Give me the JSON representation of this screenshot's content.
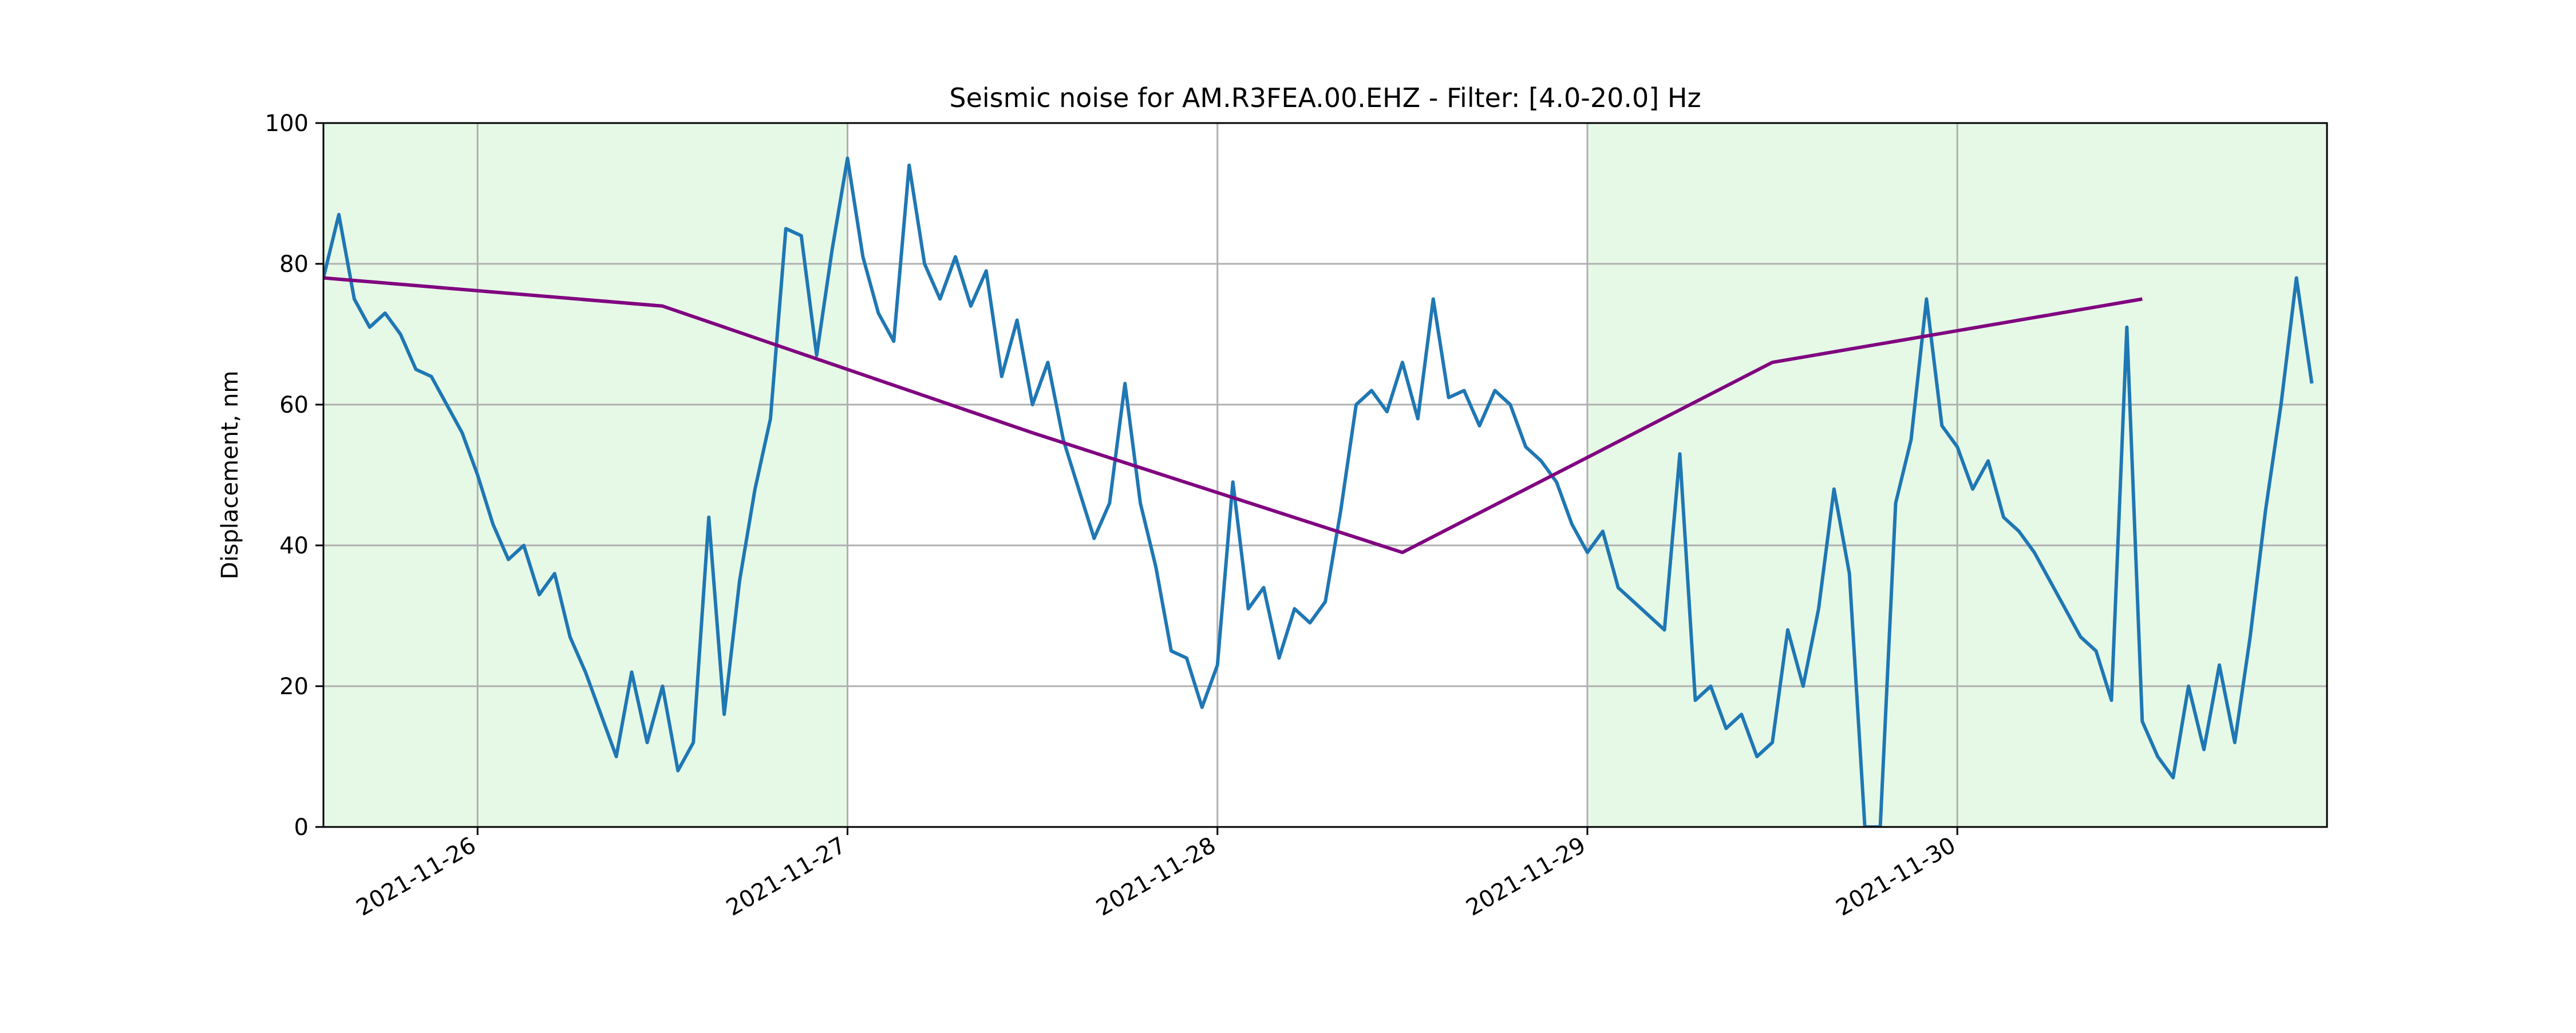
{
  "chart_data": {
    "type": "line",
    "title": "Seismic noise for AM.R3FEA.00.EHZ - Filter: [4.0-20.0] Hz",
    "xlabel": "",
    "ylabel": "Displacement, nm",
    "ylim": [
      0,
      100
    ],
    "xlim": [
      "2021-11-25 14:00",
      "2021-11-30 23:59"
    ],
    "y_ticks": [
      "0",
      "20",
      "40",
      "60",
      "80",
      "100"
    ],
    "x_ticks": [
      "2021-11-26",
      "2021-11-27",
      "2021-11-28",
      "2021-11-29",
      "2021-11-30"
    ],
    "grid": true,
    "shaded_spans": [
      {
        "start": "2021-11-25 14:00",
        "end": "2021-11-27 00:00",
        "color": "#e6f9e6"
      },
      {
        "start": "2021-11-29 00:00",
        "end": "2021-11-30 23:59",
        "color": "#e6f9e6"
      }
    ],
    "series": [
      {
        "color": "#1f77b4",
        "points": [
          [
            "2021-11-25 14:00",
            78
          ],
          [
            "2021-11-25 15:00",
            87
          ],
          [
            "2021-11-25 16:00",
            75
          ],
          [
            "2021-11-25 17:00",
            71
          ],
          [
            "2021-11-25 18:00",
            73
          ],
          [
            "2021-11-25 19:00",
            70
          ],
          [
            "2021-11-25 20:00",
            65
          ],
          [
            "2021-11-25 21:00",
            64
          ],
          [
            "2021-11-25 22:00",
            60
          ],
          [
            "2021-11-25 23:00",
            56
          ],
          [
            "2021-11-26 00:00",
            50
          ],
          [
            "2021-11-26 01:00",
            43
          ],
          [
            "2021-11-26 02:00",
            38
          ],
          [
            "2021-11-26 03:00",
            40
          ],
          [
            "2021-11-26 04:00",
            33
          ],
          [
            "2021-11-26 05:00",
            36
          ],
          [
            "2021-11-26 06:00",
            27
          ],
          [
            "2021-11-26 07:00",
            22
          ],
          [
            "2021-11-26 08:00",
            16
          ],
          [
            "2021-11-26 09:00",
            10
          ],
          [
            "2021-11-26 10:00",
            22
          ],
          [
            "2021-11-26 11:00",
            12
          ],
          [
            "2021-11-26 12:00",
            20
          ],
          [
            "2021-11-26 13:00",
            8
          ],
          [
            "2021-11-26 14:00",
            12
          ],
          [
            "2021-11-26 15:00",
            44
          ],
          [
            "2021-11-26 16:00",
            16
          ],
          [
            "2021-11-26 17:00",
            35
          ],
          [
            "2021-11-26 18:00",
            48
          ],
          [
            "2021-11-26 19:00",
            58
          ],
          [
            "2021-11-26 20:00",
            85
          ],
          [
            "2021-11-26 21:00",
            84
          ],
          [
            "2021-11-26 22:00",
            67
          ],
          [
            "2021-11-26 23:00",
            82
          ],
          [
            "2021-11-27 00:00",
            95
          ],
          [
            "2021-11-27 01:00",
            81
          ],
          [
            "2021-11-27 02:00",
            73
          ],
          [
            "2021-11-27 03:00",
            69
          ],
          [
            "2021-11-27 04:00",
            94
          ],
          [
            "2021-11-27 05:00",
            80
          ],
          [
            "2021-11-27 06:00",
            75
          ],
          [
            "2021-11-27 07:00",
            81
          ],
          [
            "2021-11-27 08:00",
            74
          ],
          [
            "2021-11-27 09:00",
            79
          ],
          [
            "2021-11-27 10:00",
            64
          ],
          [
            "2021-11-27 11:00",
            72
          ],
          [
            "2021-11-27 12:00",
            60
          ],
          [
            "2021-11-27 13:00",
            66
          ],
          [
            "2021-11-27 14:00",
            55
          ],
          [
            "2021-11-27 15:00",
            48
          ],
          [
            "2021-11-27 16:00",
            41
          ],
          [
            "2021-11-27 17:00",
            46
          ],
          [
            "2021-11-27 18:00",
            63
          ],
          [
            "2021-11-27 19:00",
            46
          ],
          [
            "2021-11-27 20:00",
            37
          ],
          [
            "2021-11-27 21:00",
            25
          ],
          [
            "2021-11-27 22:00",
            24
          ],
          [
            "2021-11-27 23:00",
            17
          ],
          [
            "2021-11-28 00:00",
            23
          ],
          [
            "2021-11-28 01:00",
            49
          ],
          [
            "2021-11-28 02:00",
            31
          ],
          [
            "2021-11-28 03:00",
            34
          ],
          [
            "2021-11-28 04:00",
            24
          ],
          [
            "2021-11-28 05:00",
            31
          ],
          [
            "2021-11-28 06:00",
            29
          ],
          [
            "2021-11-28 07:00",
            32
          ],
          [
            "2021-11-28 08:00",
            45
          ],
          [
            "2021-11-28 09:00",
            60
          ],
          [
            "2021-11-28 10:00",
            62
          ],
          [
            "2021-11-28 11:00",
            59
          ],
          [
            "2021-11-28 12:00",
            66
          ],
          [
            "2021-11-28 13:00",
            58
          ],
          [
            "2021-11-28 14:00",
            75
          ],
          [
            "2021-11-28 15:00",
            61
          ],
          [
            "2021-11-28 16:00",
            62
          ],
          [
            "2021-11-28 17:00",
            57
          ],
          [
            "2021-11-28 18:00",
            62
          ],
          [
            "2021-11-28 19:00",
            60
          ],
          [
            "2021-11-28 20:00",
            54
          ],
          [
            "2021-11-28 21:00",
            52
          ],
          [
            "2021-11-28 22:00",
            49
          ],
          [
            "2021-11-28 23:00",
            43
          ],
          [
            "2021-11-29 00:00",
            39
          ],
          [
            "2021-11-29 01:00",
            42
          ],
          [
            "2021-11-29 02:00",
            34
          ],
          [
            "2021-11-29 03:00",
            32
          ],
          [
            "2021-11-29 04:00",
            30
          ],
          [
            "2021-11-29 05:00",
            28
          ],
          [
            "2021-11-29 06:00",
            53
          ],
          [
            "2021-11-29 07:00",
            18
          ],
          [
            "2021-11-29 08:00",
            20
          ],
          [
            "2021-11-29 09:00",
            14
          ],
          [
            "2021-11-29 10:00",
            16
          ],
          [
            "2021-11-29 11:00",
            10
          ],
          [
            "2021-11-29 12:00",
            12
          ],
          [
            "2021-11-29 13:00",
            28
          ],
          [
            "2021-11-29 14:00",
            20
          ],
          [
            "2021-11-29 15:00",
            31
          ],
          [
            "2021-11-29 16:00",
            48
          ],
          [
            "2021-11-29 17:00",
            36
          ],
          [
            "2021-11-29 18:00",
            0
          ],
          [
            "2021-11-29 19:00",
            0
          ],
          [
            "2021-11-29 20:00",
            46
          ],
          [
            "2021-11-29 21:00",
            55
          ],
          [
            "2021-11-29 22:00",
            75
          ],
          [
            "2021-11-29 23:00",
            57
          ],
          [
            "2021-11-30 00:00",
            54
          ],
          [
            "2021-11-30 01:00",
            48
          ],
          [
            "2021-11-30 02:00",
            52
          ],
          [
            "2021-11-30 03:00",
            44
          ],
          [
            "2021-11-30 04:00",
            42
          ],
          [
            "2021-11-30 05:00",
            39
          ],
          [
            "2021-11-30 06:00",
            35
          ],
          [
            "2021-11-30 07:00",
            31
          ],
          [
            "2021-11-30 08:00",
            27
          ],
          [
            "2021-11-30 09:00",
            25
          ],
          [
            "2021-11-30 10:00",
            18
          ],
          [
            "2021-11-30 11:00",
            71
          ],
          [
            "2021-11-30 12:00",
            15
          ],
          [
            "2021-11-30 13:00",
            10
          ],
          [
            "2021-11-30 14:00",
            7
          ],
          [
            "2021-11-30 15:00",
            20
          ],
          [
            "2021-11-30 16:00",
            11
          ],
          [
            "2021-11-30 17:00",
            23
          ],
          [
            "2021-11-30 18:00",
            12
          ],
          [
            "2021-11-30 19:00",
            27
          ],
          [
            "2021-11-30 20:00",
            45
          ],
          [
            "2021-11-30 21:00",
            60
          ],
          [
            "2021-11-30 22:00",
            78
          ],
          [
            "2021-11-30 23:00",
            63
          ]
        ]
      },
      {
        "color": "#800080",
        "points": [
          [
            "2021-11-25 14:00",
            78
          ],
          [
            "2021-11-26 12:00",
            74
          ],
          [
            "2021-11-27 12:00",
            56
          ],
          [
            "2021-11-28 12:00",
            39
          ],
          [
            "2021-11-29 12:00",
            66
          ],
          [
            "2021-11-30 12:00",
            75
          ]
        ]
      }
    ]
  }
}
